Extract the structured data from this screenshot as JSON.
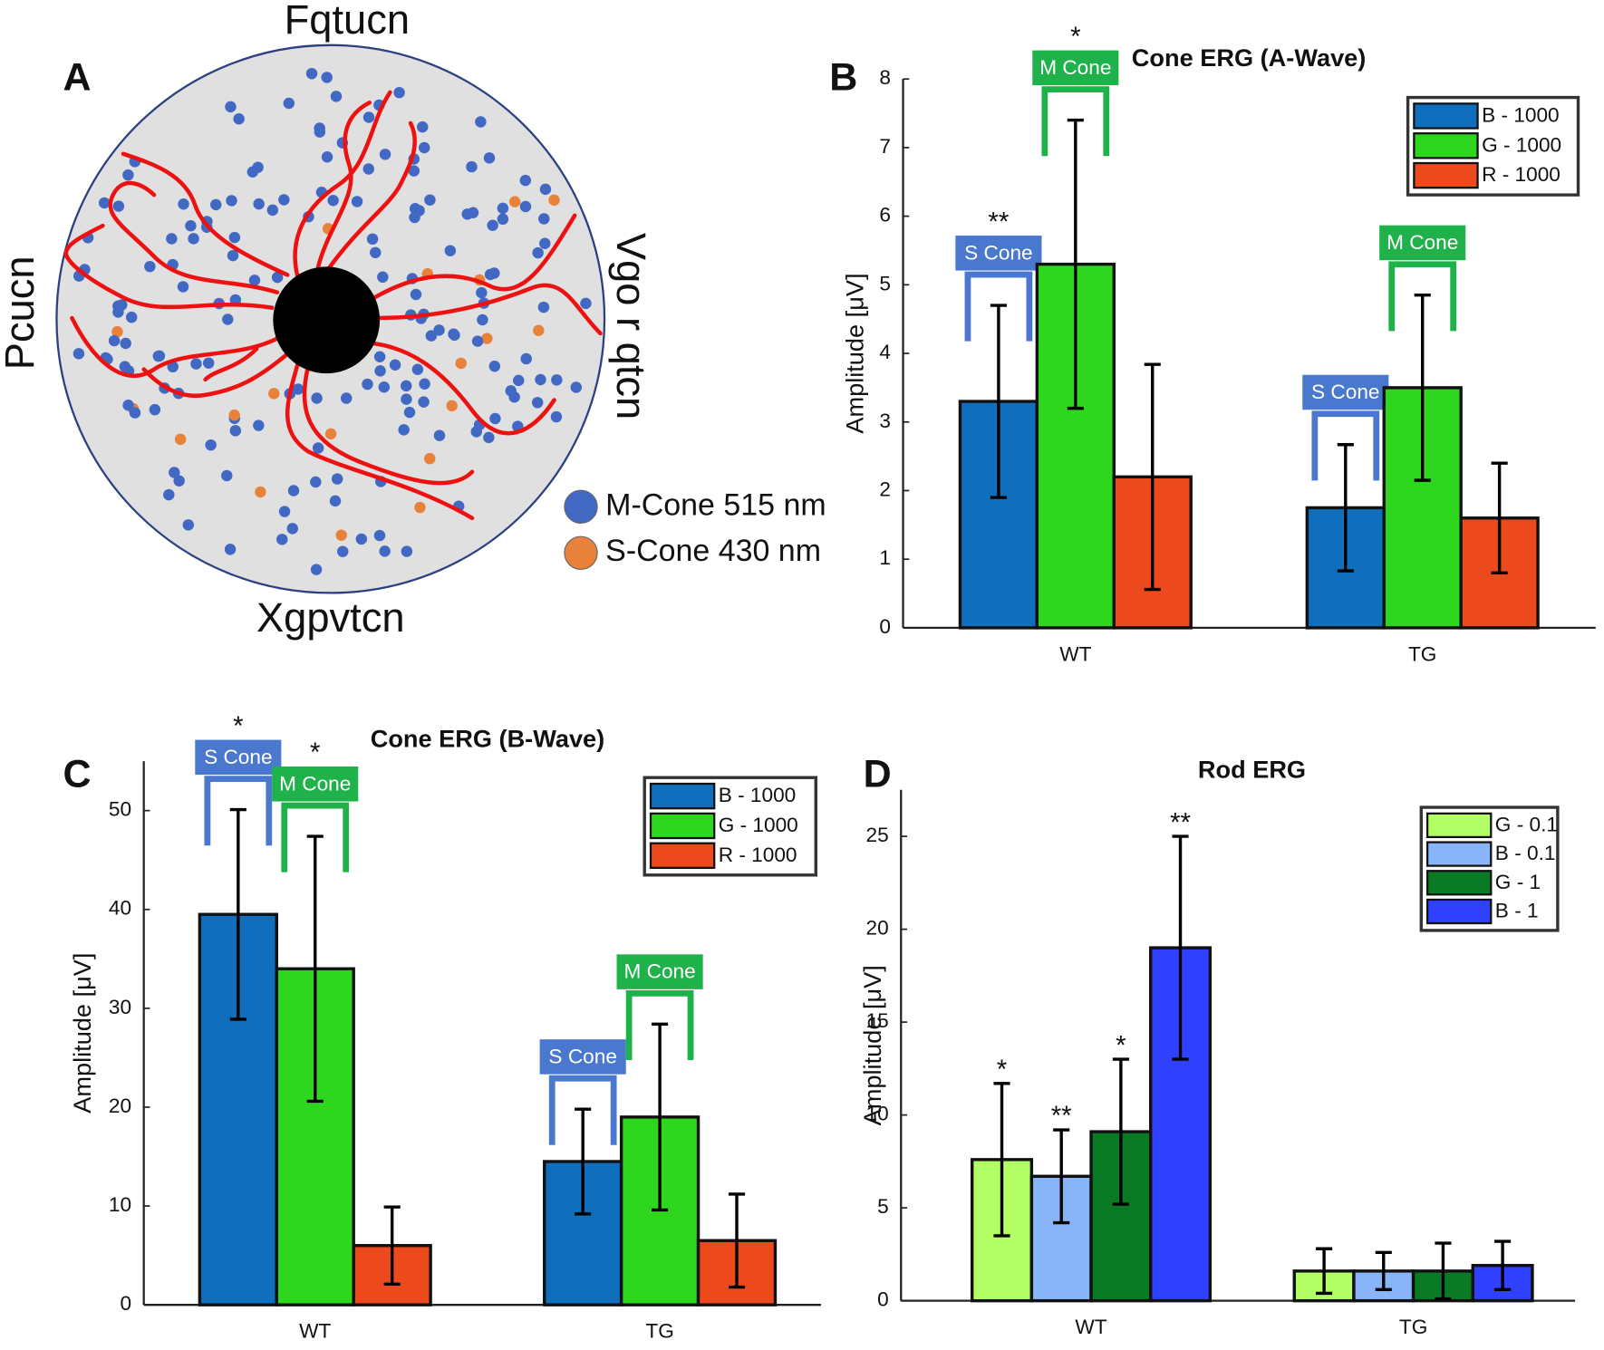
{
  "diagram": {
    "panel": "A",
    "labels": {
      "top": "Fqtucn",
      "left": "Pcucn",
      "right": "Vgo r qtcn",
      "bottom": "Xgpvtcn"
    },
    "legend": [
      {
        "name": "M-Cone 515 nm",
        "color": "#4169c4"
      },
      {
        "name": "S-Cone 430 nm",
        "color": "#e8823a"
      }
    ]
  },
  "chart_data": [
    {
      "type": "bar",
      "panel": "B",
      "title": "Cone ERG (A-Wave)",
      "y_label": "Amplitude [μV]",
      "categories": [
        "WT",
        "TG"
      ],
      "ylim": [
        0,
        8
      ],
      "yticks": [
        0,
        1,
        2,
        3,
        4,
        5,
        6,
        7,
        8
      ],
      "legend": "upper right",
      "series": [
        {
          "name": "B - 1000",
          "color": "#0f6fbd",
          "values": [
            3.3,
            1.75
          ],
          "errors": [
            1.4,
            0.92
          ],
          "brackets": [
            "S Cone",
            "S Cone"
          ],
          "bracket_color": "#4a78cf",
          "stars": [
            "**",
            null
          ]
        },
        {
          "name": "G - 1000",
          "color": "#2ed61e",
          "values": [
            5.3,
            3.5
          ],
          "errors": [
            2.1,
            1.35
          ],
          "brackets": [
            "M Cone",
            "M Cone"
          ],
          "bracket_color": "#1fb24a",
          "stars": [
            "*",
            null
          ]
        },
        {
          "name": "R - 1000",
          "color": "#ec4a1c",
          "values": [
            2.2,
            1.6
          ],
          "errors": [
            1.64,
            0.8
          ]
        }
      ]
    },
    {
      "type": "bar",
      "panel": "C",
      "title": "Cone ERG (B-Wave)",
      "y_label": "Amplitude [μV]",
      "categories": [
        "WT",
        "TG"
      ],
      "ylim": [
        0,
        55
      ],
      "yticks": [
        0,
        10,
        20,
        30,
        40,
        50
      ],
      "legend": "upper right",
      "series": [
        {
          "name": "B - 1000",
          "color": "#0f6fbd",
          "values": [
            39.5,
            14.5
          ],
          "errors": [
            10.6,
            5.3
          ],
          "brackets": [
            "S Cone",
            "S Cone"
          ],
          "bracket_color": "#4a78cf",
          "stars": [
            "*",
            null
          ]
        },
        {
          "name": "G - 1000",
          "color": "#2ed61e",
          "values": [
            34,
            19
          ],
          "errors": [
            13.4,
            9.4
          ],
          "brackets": [
            "M Cone",
            "M Cone"
          ],
          "bracket_color": "#1fb24a",
          "stars": [
            "*",
            null
          ]
        },
        {
          "name": "R - 1000",
          "color": "#ec4a1c",
          "values": [
            6,
            6.5
          ],
          "errors": [
            3.9,
            4.7
          ]
        }
      ]
    },
    {
      "type": "bar",
      "panel": "D",
      "title": "Rod ERG",
      "y_label": "Amplitude [μV]",
      "categories": [
        "WT",
        "TG"
      ],
      "ylim": [
        0,
        27.5
      ],
      "yticks": [
        0,
        5,
        10,
        15,
        20,
        25
      ],
      "legend": "upper right",
      "series": [
        {
          "name": "G - 0.1",
          "color": "#b3ff66",
          "values": [
            7.6,
            1.6
          ],
          "errors": [
            4.1,
            1.2
          ],
          "stars": [
            "*",
            null
          ]
        },
        {
          "name": "B - 0.1",
          "color": "#8ab4f8",
          "values": [
            6.7,
            1.6
          ],
          "errors": [
            2.5,
            1.0
          ],
          "stars": [
            "**",
            null
          ]
        },
        {
          "name": "G - 1",
          "color": "#0a7a24",
          "values": [
            9.1,
            1.6
          ],
          "errors": [
            3.9,
            1.5
          ],
          "stars": [
            "*",
            null
          ]
        },
        {
          "name": "B - 1",
          "color": "#3040ff",
          "values": [
            19,
            1.9
          ],
          "errors": [
            6,
            1.3
          ],
          "stars": [
            "**",
            null
          ]
        }
      ]
    }
  ]
}
